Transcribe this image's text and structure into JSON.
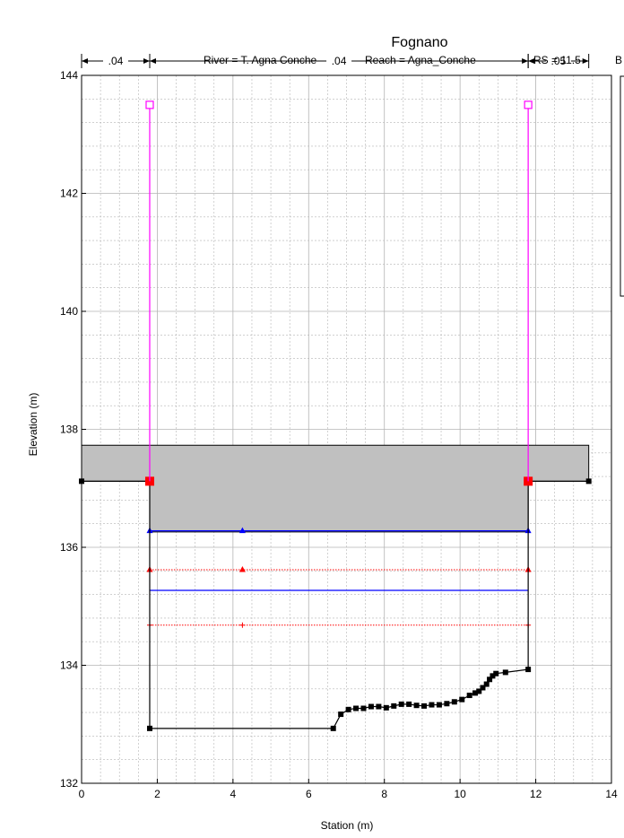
{
  "chart_data": {
    "type": "line",
    "title": "Fognano",
    "subtitle_parts": [
      "River = T. Agna Conche",
      "Reach = Agna_Conche",
      "RS = 11.5",
      "B"
    ],
    "xlabel": "Station (m)",
    "ylabel": "Elevation (m)",
    "xlim": [
      0,
      14
    ],
    "ylim": [
      132,
      144
    ],
    "x_ticks": [
      0,
      2,
      4,
      6,
      8,
      10,
      12,
      14
    ],
    "y_ticks": [
      132,
      134,
      136,
      138,
      140,
      142,
      144
    ],
    "grid": true,
    "manning_n": {
      "left": {
        "label": ".04",
        "from": 0,
        "to": 1.8
      },
      "channel": {
        "label": ".04",
        "from": 1.8,
        "to": 11.8
      },
      "right": {
        "label": ".05",
        "from": 11.8,
        "to": 13.4
      }
    },
    "bridge_deck": {
      "x_start": 0,
      "x_end": 13.4,
      "top": 137.73,
      "low_chord": 136.26,
      "left_abutment": 1.8,
      "right_abutment": 11.8
    },
    "ground": [
      [
        0,
        137.12
      ],
      [
        1.8,
        137.12
      ],
      [
        1.8,
        132.93
      ],
      [
        6.65,
        132.93
      ],
      [
        6.85,
        133.17
      ],
      [
        7.05,
        133.25
      ],
      [
        7.25,
        133.27
      ],
      [
        7.45,
        133.27
      ],
      [
        7.65,
        133.3
      ],
      [
        7.85,
        133.3
      ],
      [
        8.05,
        133.28
      ],
      [
        8.25,
        133.31
      ],
      [
        8.45,
        133.34
      ],
      [
        8.65,
        133.34
      ],
      [
        8.85,
        133.32
      ],
      [
        9.05,
        133.31
      ],
      [
        9.25,
        133.33
      ],
      [
        9.45,
        133.33
      ],
      [
        9.65,
        133.35
      ],
      [
        9.85,
        133.38
      ],
      [
        10.05,
        133.42
      ],
      [
        10.25,
        133.49
      ],
      [
        10.4,
        133.53
      ],
      [
        10.5,
        133.56
      ],
      [
        10.6,
        133.62
      ],
      [
        10.7,
        133.68
      ],
      [
        10.78,
        133.76
      ],
      [
        10.86,
        133.82
      ],
      [
        10.95,
        133.86
      ],
      [
        11.2,
        133.88
      ],
      [
        11.8,
        133.93
      ],
      [
        11.8,
        137.12
      ],
      [
        13.4,
        137.12
      ]
    ],
    "ineffective_markers": [
      [
        1.8,
        143.5
      ],
      [
        11.8,
        143.5
      ]
    ],
    "red_points": [
      [
        1.8,
        137.12
      ],
      [
        11.8,
        137.12
      ]
    ],
    "water_surfaces": [
      {
        "type": "upper",
        "color": "#0000ff",
        "y": 136.28,
        "x": [
          1.8,
          11.8
        ],
        "marker": "triangle",
        "mid_x": 4.25
      },
      {
        "type": "upper",
        "color": "#ff0000",
        "y": 135.62,
        "x": [
          1.8,
          11.8
        ],
        "marker": "triangle",
        "mid_x": 4.25,
        "dotted": true
      },
      {
        "type": "upper",
        "color": "#0000ff",
        "y": 135.27,
        "x": [
          1.8,
          11.8
        ],
        "marker": "none"
      },
      {
        "type": "upper",
        "color": "#ff0000",
        "y": 134.68,
        "x": [
          1.8,
          11.8
        ],
        "marker": "plus",
        "mid_x": 4.25,
        "dotted": true
      }
    ],
    "colors": {
      "deck_fill": "#c0c0c0",
      "ground": "#000000",
      "ineffective": "#ff00ff",
      "grid": "#b4b4b4"
    }
  }
}
